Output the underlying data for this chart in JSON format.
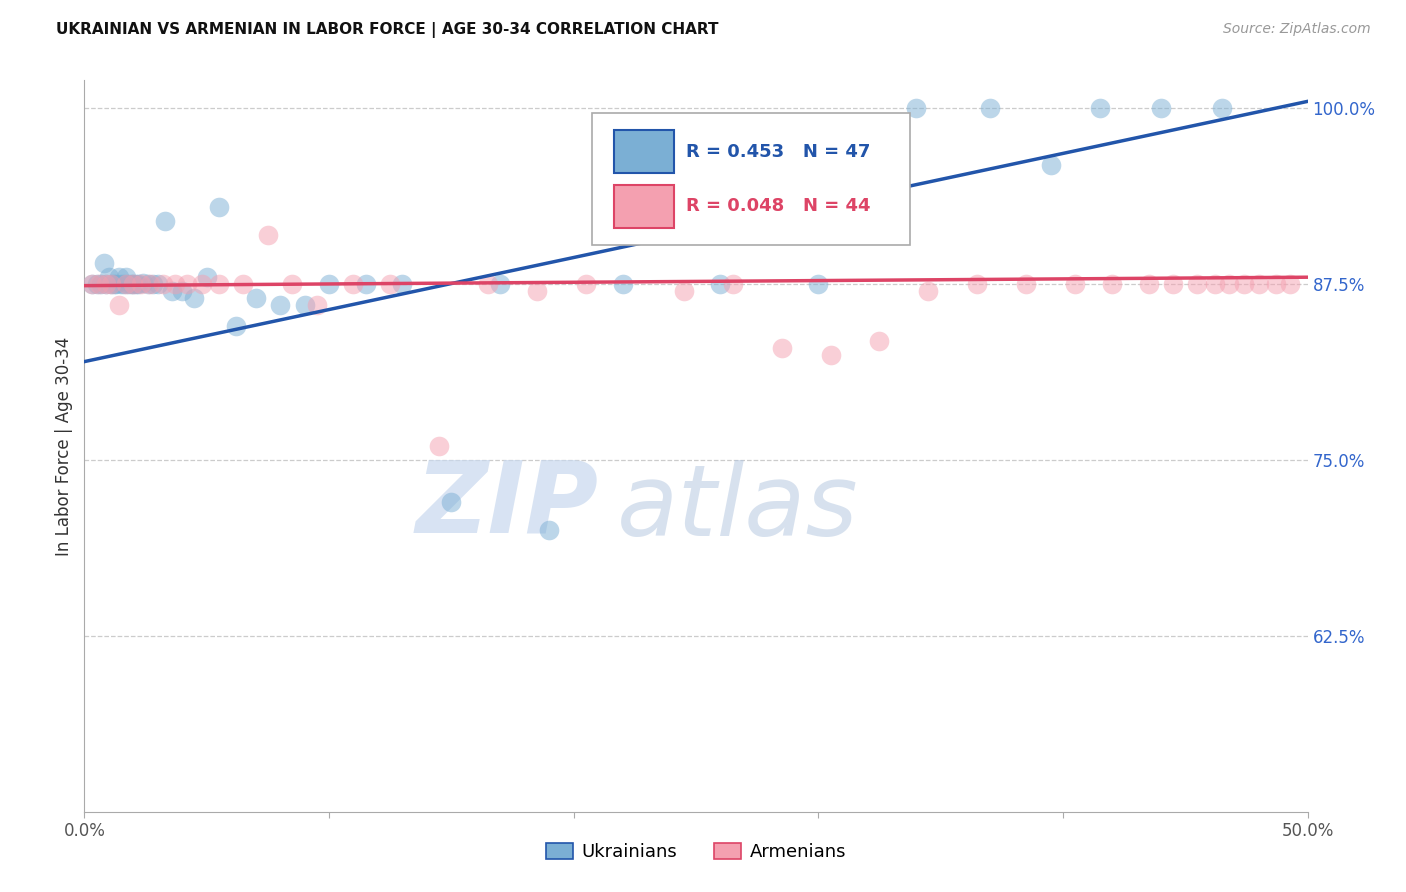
{
  "title": "UKRAINIAN VS ARMENIAN IN LABOR FORCE | AGE 30-34 CORRELATION CHART",
  "source": "Source: ZipAtlas.com",
  "ylabel": "In Labor Force | Age 30-34",
  "xlim": [
    0.0,
    0.5
  ],
  "ylim": [
    0.5,
    1.02
  ],
  "ytick_right_labels": [
    "100.0%",
    "87.5%",
    "75.0%",
    "62.5%"
  ],
  "ytick_right_values": [
    1.0,
    0.875,
    0.75,
    0.625
  ],
  "grid_color": "#cccccc",
  "background_color": "#ffffff",
  "ukrainian_color": "#7bafd4",
  "armenian_color": "#f4a0b0",
  "ukrainian_line_color": "#2255aa",
  "armenian_line_color": "#dd4466",
  "legend_R_ukrainian": "R = 0.453",
  "legend_N_ukrainian": "N = 47",
  "legend_R_armenian": "R = 0.048",
  "legend_N_armenian": "N = 44",
  "watermark_zip": "ZIP",
  "watermark_atlas": "atlas",
  "ukrainians_label": "Ukrainians",
  "armenians_label": "Armenians",
  "ukrainian_line_x0": 0.0,
  "ukrainian_line_y0": 0.82,
  "ukrainian_line_x1": 0.5,
  "ukrainian_line_y1": 1.005,
  "armenian_line_x0": 0.0,
  "armenian_line_y0": 0.874,
  "armenian_line_x1": 0.5,
  "armenian_line_y1": 0.88,
  "ukrainian_points_x": [
    0.003,
    0.005,
    0.007,
    0.008,
    0.009,
    0.01,
    0.011,
    0.012,
    0.013,
    0.014,
    0.015,
    0.016,
    0.017,
    0.018,
    0.019,
    0.02,
    0.021,
    0.022,
    0.024,
    0.026,
    0.028,
    0.03,
    0.033,
    0.036,
    0.04,
    0.045,
    0.05,
    0.055,
    0.062,
    0.07,
    0.08,
    0.09,
    0.1,
    0.115,
    0.13,
    0.15,
    0.17,
    0.19,
    0.22,
    0.26,
    0.3,
    0.34,
    0.37,
    0.395,
    0.415,
    0.44,
    0.465
  ],
  "ukrainian_points_y": [
    0.875,
    0.875,
    0.875,
    0.89,
    0.875,
    0.88,
    0.875,
    0.875,
    0.875,
    0.88,
    0.875,
    0.875,
    0.88,
    0.875,
    0.875,
    0.875,
    0.875,
    0.875,
    0.876,
    0.875,
    0.875,
    0.875,
    0.92,
    0.87,
    0.87,
    0.865,
    0.88,
    0.93,
    0.845,
    0.865,
    0.86,
    0.86,
    0.875,
    0.875,
    0.875,
    0.72,
    0.875,
    0.7,
    0.875,
    0.875,
    0.875,
    1.0,
    1.0,
    0.96,
    1.0,
    1.0,
    1.0
  ],
  "armenian_points_x": [
    0.003,
    0.006,
    0.009,
    0.011,
    0.014,
    0.017,
    0.02,
    0.023,
    0.027,
    0.032,
    0.037,
    0.042,
    0.048,
    0.055,
    0.065,
    0.075,
    0.085,
    0.095,
    0.11,
    0.125,
    0.145,
    0.165,
    0.185,
    0.205,
    0.225,
    0.245,
    0.265,
    0.285,
    0.305,
    0.325,
    0.345,
    0.365,
    0.385,
    0.405,
    0.42,
    0.435,
    0.445,
    0.455,
    0.462,
    0.468,
    0.474,
    0.48,
    0.487,
    0.493
  ],
  "armenian_points_y": [
    0.875,
    0.875,
    0.875,
    0.875,
    0.86,
    0.875,
    0.875,
    0.875,
    0.875,
    0.875,
    0.875,
    0.875,
    0.875,
    0.875,
    0.875,
    0.91,
    0.875,
    0.86,
    0.875,
    0.875,
    0.76,
    0.875,
    0.87,
    0.875,
    0.94,
    0.87,
    0.875,
    0.83,
    0.825,
    0.835,
    0.87,
    0.875,
    0.875,
    0.875,
    0.875,
    0.875,
    0.875,
    0.875,
    0.875,
    0.875,
    0.875,
    0.875,
    0.875,
    0.875
  ]
}
